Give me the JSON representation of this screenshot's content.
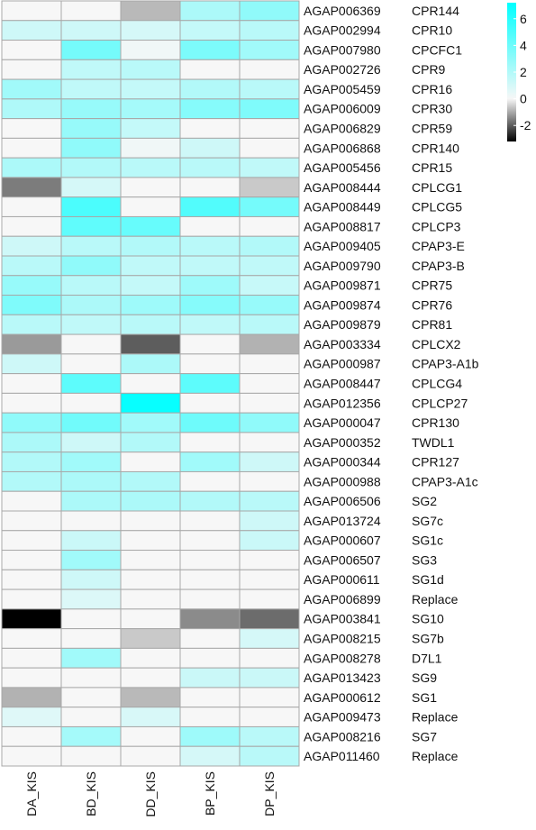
{
  "chart_data": {
    "type": "heatmap",
    "title": "",
    "xlabel": "",
    "ylabel": "",
    "columns": [
      "DA_KIS",
      "BD_KIS",
      "DD_KIS",
      "BP_KIS",
      "DP_KIS"
    ],
    "rows": [
      {
        "id": "AGAP006369",
        "name": "CPR144",
        "values": [
          0.0,
          0.0,
          -0.8,
          2.2,
          3.0
        ]
      },
      {
        "id": "AGAP002994",
        "name": "CPR10",
        "values": [
          1.2,
          1.2,
          1.0,
          1.5,
          1.8
        ]
      },
      {
        "id": "AGAP007980",
        "name": "CPCFC1",
        "values": [
          0.0,
          3.8,
          0.2,
          3.6,
          2.5
        ]
      },
      {
        "id": "AGAP002726",
        "name": "CPR9",
        "values": [
          0.0,
          1.6,
          1.8,
          0.0,
          0.0
        ]
      },
      {
        "id": "AGAP005459",
        "name": "CPR16",
        "values": [
          2.5,
          1.6,
          1.5,
          2.0,
          1.8
        ]
      },
      {
        "id": "AGAP006009",
        "name": "CPR30",
        "values": [
          2.1,
          2.8,
          2.4,
          3.3,
          3.5
        ]
      },
      {
        "id": "AGAP006829",
        "name": "CPR59",
        "values": [
          0.0,
          2.8,
          1.5,
          0.0,
          0.0
        ]
      },
      {
        "id": "AGAP006868",
        "name": "CPR140",
        "values": [
          0.0,
          3.0,
          0.2,
          1.2,
          0.0
        ]
      },
      {
        "id": "AGAP005456",
        "name": "CPR15",
        "values": [
          2.2,
          2.0,
          1.8,
          1.8,
          1.6
        ]
      },
      {
        "id": "AGAP008444",
        "name": "CPLCG1",
        "values": [
          -1.6,
          1.0,
          0.0,
          0.0,
          -0.6
        ]
      },
      {
        "id": "AGAP008449",
        "name": "CPLCG5",
        "values": [
          0.0,
          5.0,
          0.0,
          4.8,
          3.8
        ]
      },
      {
        "id": "AGAP008817",
        "name": "CPLCP3",
        "values": [
          0.0,
          4.4,
          4.2,
          0.0,
          0.0
        ]
      },
      {
        "id": "AGAP009405",
        "name": "CPAP3-E",
        "values": [
          1.2,
          1.8,
          2.0,
          1.8,
          2.0
        ]
      },
      {
        "id": "AGAP009790",
        "name": "CPAP3-B",
        "values": [
          1.8,
          3.0,
          1.6,
          1.6,
          1.6
        ]
      },
      {
        "id": "AGAP009871",
        "name": "CPR75",
        "values": [
          2.8,
          1.8,
          1.5,
          2.6,
          1.4
        ]
      },
      {
        "id": "AGAP009874",
        "name": "CPR76",
        "values": [
          3.5,
          2.2,
          2.6,
          3.3,
          2.8
        ]
      },
      {
        "id": "AGAP009879",
        "name": "CPR81",
        "values": [
          1.8,
          1.6,
          1.8,
          1.6,
          1.8
        ]
      },
      {
        "id": "AGAP003334",
        "name": "CPLCX2",
        "values": [
          -1.2,
          0.0,
          -2.0,
          0.0,
          -0.9
        ]
      },
      {
        "id": "AGAP000987",
        "name": "CPAP3-A1b",
        "values": [
          1.2,
          0.0,
          2.2,
          0.0,
          0.0
        ]
      },
      {
        "id": "AGAP008447",
        "name": "CPLCG4",
        "values": [
          0.0,
          4.5,
          0.0,
          4.5,
          0.0
        ]
      },
      {
        "id": "AGAP012356",
        "name": "CPLCP27",
        "values": [
          0.0,
          0.0,
          7.0,
          0.0,
          0.0
        ]
      },
      {
        "id": "AGAP000047",
        "name": "CPR130",
        "values": [
          3.0,
          3.9,
          2.5,
          4.0,
          3.0
        ]
      },
      {
        "id": "AGAP000352",
        "name": "TWDL1",
        "values": [
          2.2,
          1.2,
          2.0,
          0.0,
          0.0
        ]
      },
      {
        "id": "AGAP000344",
        "name": "CPR127",
        "values": [
          2.0,
          2.5,
          0.0,
          2.5,
          1.2
        ]
      },
      {
        "id": "AGAP000988",
        "name": "CPAP3-A1c",
        "values": [
          2.0,
          2.2,
          2.0,
          0.0,
          0.0
        ]
      },
      {
        "id": "AGAP006506",
        "name": "SG2",
        "values": [
          0.0,
          2.2,
          2.2,
          2.0,
          1.8
        ]
      },
      {
        "id": "AGAP013724",
        "name": "SG7c",
        "values": [
          0.0,
          0.0,
          0.0,
          0.0,
          1.2
        ]
      },
      {
        "id": "AGAP000607",
        "name": "SG1c",
        "values": [
          0.0,
          1.3,
          0.0,
          0.0,
          1.3
        ]
      },
      {
        "id": "AGAP006507",
        "name": "SG3",
        "values": [
          0.0,
          2.5,
          0.0,
          0.0,
          0.0
        ]
      },
      {
        "id": "AGAP000611",
        "name": "SG1d",
        "values": [
          0.0,
          1.2,
          0.0,
          0.0,
          0.0
        ]
      },
      {
        "id": "AGAP006899",
        "name": "Replace",
        "values": [
          0.0,
          0.8,
          0.0,
          0.0,
          0.0
        ]
      },
      {
        "id": "AGAP003841",
        "name": "SG10",
        "values": [
          -3.2,
          0.0,
          0.0,
          -1.4,
          -1.8
        ]
      },
      {
        "id": "AGAP008215",
        "name": "SG7b",
        "values": [
          0.0,
          0.0,
          -0.6,
          0.0,
          1.0
        ]
      },
      {
        "id": "AGAP008278",
        "name": "D7L1",
        "values": [
          0.0,
          2.5,
          0.0,
          0.0,
          0.0
        ]
      },
      {
        "id": "AGAP013423",
        "name": "SG9",
        "values": [
          0.0,
          0.0,
          0.0,
          1.3,
          1.3
        ]
      },
      {
        "id": "AGAP000612",
        "name": "SG1",
        "values": [
          -0.9,
          0.0,
          -0.8,
          0.0,
          0.0
        ]
      },
      {
        "id": "AGAP009473",
        "name": "Replace",
        "values": [
          0.7,
          0.0,
          0.9,
          0.0,
          0.0
        ]
      },
      {
        "id": "AGAP008216",
        "name": "SG7",
        "values": [
          0.0,
          2.4,
          0.0,
          2.6,
          1.8
        ]
      },
      {
        "id": "AGAP011460",
        "name": "Replace",
        "values": [
          0.0,
          0.0,
          0.0,
          1.0,
          1.8
        ]
      }
    ],
    "color_scale": {
      "min": -3.2,
      "max": 7.2,
      "low_color": "#000000",
      "mid_color": "#f7f7f7",
      "high_color": "#00ffff",
      "legend_ticks": [
        "6",
        "4",
        "2",
        "0",
        "-2"
      ],
      "legend_tick_values": [
        6,
        4,
        2,
        0,
        -2
      ]
    },
    "grid": true,
    "legend_position": "top-right"
  }
}
